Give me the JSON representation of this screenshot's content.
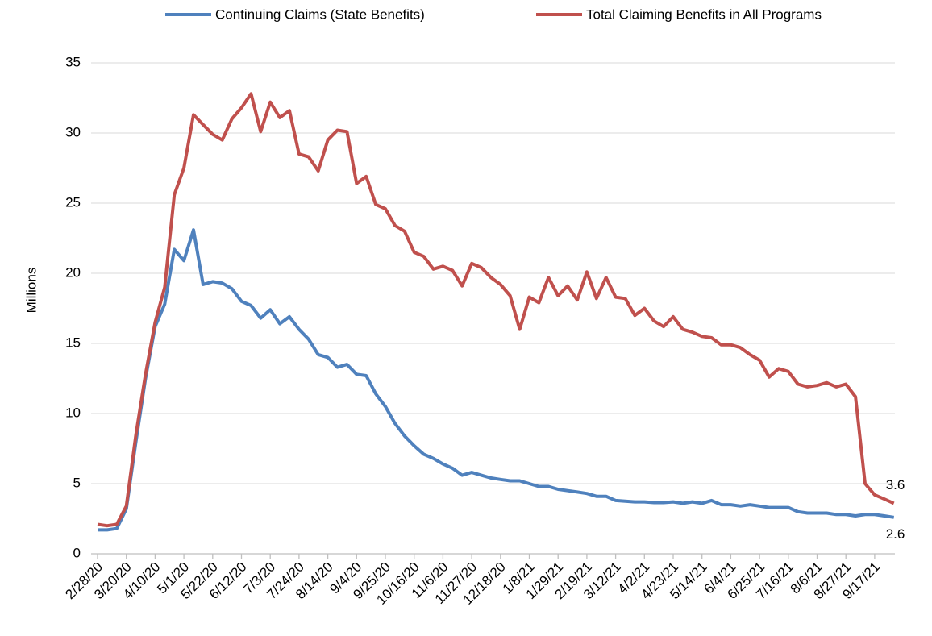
{
  "chart_data": {
    "type": "line",
    "y_label": "Millions",
    "categories": [
      "2/28/20",
      null,
      null,
      "3/20/20",
      null,
      null,
      "4/10/20",
      null,
      null,
      "5/1/20",
      null,
      null,
      "5/22/20",
      null,
      null,
      "6/12/20",
      null,
      null,
      "7/3/20",
      null,
      null,
      "7/24/20",
      null,
      null,
      "8/14/20",
      null,
      null,
      "9/4/20",
      null,
      null,
      "9/25/20",
      null,
      null,
      "10/16/20",
      null,
      null,
      "11/6/20",
      null,
      null,
      "11/27/20",
      null,
      null,
      "12/18/20",
      null,
      null,
      "1/8/21",
      null,
      null,
      "1/29/21",
      null,
      null,
      "2/19/21",
      null,
      null,
      "3/12/21",
      null,
      null,
      "4/2/21",
      null,
      null,
      "4/23/21",
      null,
      null,
      "5/14/21",
      null,
      null,
      "6/4/21",
      null,
      null,
      "6/25/21",
      null,
      null,
      "7/16/21",
      null,
      null,
      "8/6/21",
      null,
      null,
      "8/27/21",
      null,
      null,
      "9/17/21",
      null,
      null
    ],
    "series": [
      {
        "name": "Continuing Claims (State Benefits)",
        "color": "#4f81bd",
        "values": [
          1.7,
          1.7,
          1.8,
          3.2,
          8.0,
          12.5,
          16.2,
          17.8,
          21.7,
          20.9,
          23.1,
          19.2,
          19.4,
          19.3,
          18.9,
          18.0,
          17.7,
          16.8,
          17.4,
          16.4,
          16.9,
          16.0,
          15.3,
          14.2,
          14.0,
          13.3,
          13.5,
          12.8,
          12.7,
          11.4,
          10.5,
          9.3,
          8.4,
          7.7,
          7.1,
          6.8,
          6.4,
          6.1,
          5.6,
          5.8,
          5.6,
          5.4,
          5.3,
          5.2,
          5.2,
          5.0,
          4.8,
          4.8,
          4.6,
          4.5,
          4.4,
          4.3,
          4.1,
          4.1,
          3.8,
          3.75,
          3.7,
          3.7,
          3.65,
          3.65,
          3.7,
          3.6,
          3.7,
          3.6,
          3.8,
          3.5,
          3.5,
          3.4,
          3.5,
          3.4,
          3.3,
          3.3,
          3.3,
          3.0,
          2.9,
          2.9,
          2.9,
          2.8,
          2.8,
          2.7,
          2.8,
          2.8,
          2.7,
          2.6
        ]
      },
      {
        "name": "Total Claiming Benefits in All Programs",
        "color": "#c0504d",
        "values": [
          2.1,
          2.0,
          2.1,
          3.4,
          8.5,
          12.8,
          16.5,
          19.0,
          25.6,
          27.5,
          31.3,
          30.6,
          29.9,
          29.5,
          31.0,
          31.8,
          32.8,
          30.1,
          32.2,
          31.1,
          31.6,
          28.5,
          28.3,
          27.3,
          29.5,
          30.2,
          30.1,
          26.4,
          26.9,
          24.9,
          24.6,
          23.4,
          23.0,
          21.5,
          21.2,
          20.3,
          20.5,
          20.2,
          19.1,
          20.7,
          20.4,
          19.7,
          19.2,
          18.4,
          16.0,
          18.3,
          17.9,
          19.7,
          18.4,
          19.1,
          18.1,
          20.1,
          18.2,
          19.7,
          18.3,
          18.2,
          17.0,
          17.5,
          16.6,
          16.2,
          16.9,
          16.0,
          15.8,
          15.5,
          15.4,
          14.9,
          14.9,
          14.7,
          14.2,
          13.8,
          12.6,
          13.2,
          13.0,
          12.1,
          11.9,
          12.0,
          12.2,
          11.9,
          12.1,
          11.2,
          5.0,
          4.2,
          3.9,
          3.6
        ]
      }
    ],
    "ylim": [
      0,
      35
    ],
    "yticks": [
      0,
      5,
      10,
      15,
      20,
      25,
      30,
      35
    ],
    "grid": true,
    "legend": "top"
  }
}
